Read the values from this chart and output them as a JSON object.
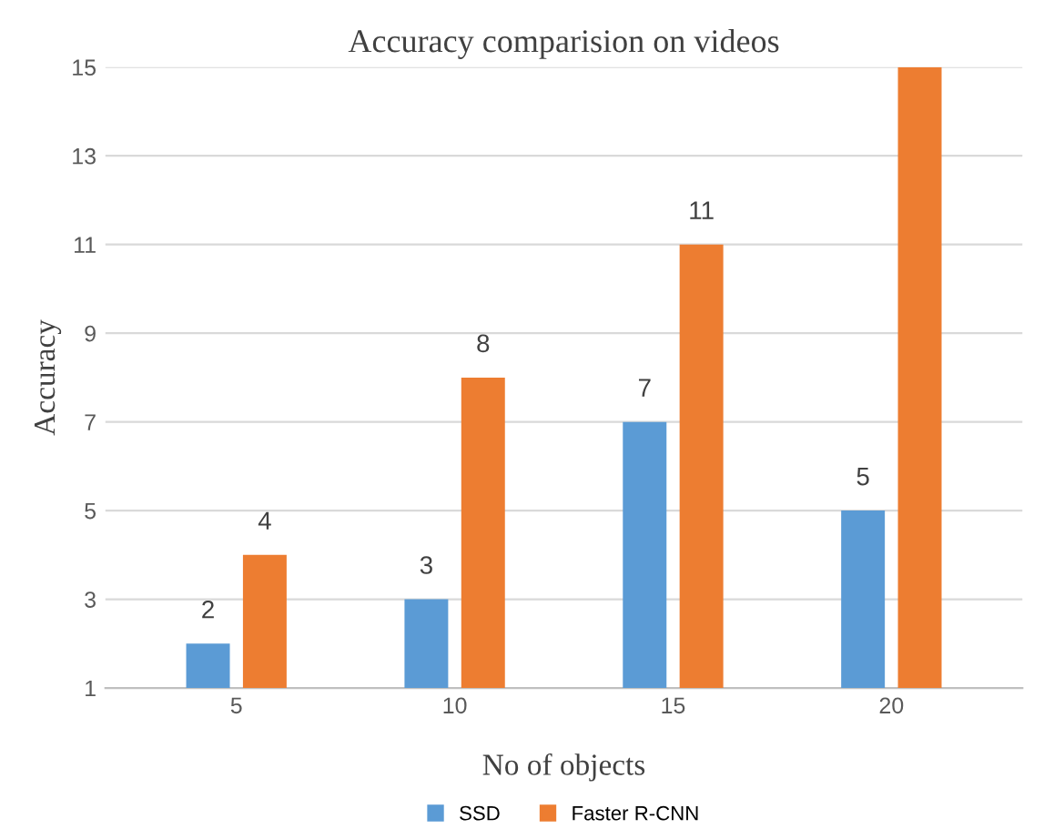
{
  "chart_data": {
    "type": "bar",
    "title": "Accuracy comparision on videos",
    "xlabel": "No of objects",
    "ylabel": "Accuracy",
    "categories": [
      "5",
      "10",
      "15",
      "20"
    ],
    "series": [
      {
        "name": "SSD",
        "color": "#5b9bd5",
        "values": [
          2,
          3,
          7,
          5
        ],
        "value_labels": [
          "2",
          "3",
          "7",
          "5"
        ]
      },
      {
        "name": "Faster R-CNN",
        "color": "#ed7d31",
        "values": [
          4,
          8,
          11,
          15
        ],
        "value_labels": [
          "4",
          "8",
          "11",
          null
        ]
      }
    ],
    "ylim": [
      1,
      15
    ],
    "yticks": [
      1,
      3,
      5,
      7,
      9,
      11,
      13,
      15
    ],
    "grid": "y",
    "legend": "bottom"
  }
}
